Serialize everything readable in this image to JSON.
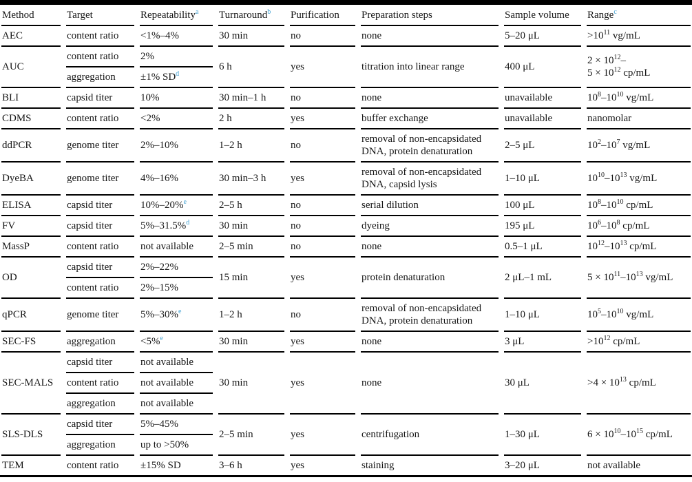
{
  "accent_color": "#3f9fd1",
  "table": {
    "columns": [
      {
        "label": "Method",
        "footnote": ""
      },
      {
        "label": "Target",
        "footnote": ""
      },
      {
        "label": "Repeatability",
        "footnote": "a"
      },
      {
        "label": "Turnaround",
        "footnote": "b"
      },
      {
        "label": "Purification",
        "footnote": ""
      },
      {
        "label": "Preparation steps",
        "footnote": ""
      },
      {
        "label": "Sample volume",
        "footnote": ""
      },
      {
        "label": "Range",
        "footnote": "c"
      }
    ],
    "groups": [
      {
        "method": "AEC",
        "rows": [
          {
            "target": "content ratio",
            "repeatability": "<1%–4%",
            "footnote": ""
          }
        ],
        "turnaround": "30 min",
        "purification": "no",
        "preparation": "none",
        "sample_volume": "5–20 μL",
        "range": ">10^{11} vg/mL"
      },
      {
        "method": "AUC",
        "rows": [
          {
            "target": "content ratio",
            "repeatability": "2%",
            "footnote": ""
          },
          {
            "target": "aggregation",
            "repeatability": "±1% SD",
            "footnote": "d"
          }
        ],
        "turnaround": "6 h",
        "purification": "yes",
        "preparation": "titration into linear range",
        "sample_volume": "400 μL",
        "range": "2 × 10^{12}–\n5 × 10^{12} cp/mL"
      },
      {
        "method": "BLI",
        "rows": [
          {
            "target": "capsid titer",
            "repeatability": "10%",
            "footnote": ""
          }
        ],
        "turnaround": "30 min–1 h",
        "purification": "no",
        "preparation": "none",
        "sample_volume": "unavailable",
        "range": "10^{8}–10^{10} vg/mL"
      },
      {
        "method": "CDMS",
        "rows": [
          {
            "target": "content ratio",
            "repeatability": "<2%",
            "footnote": ""
          }
        ],
        "turnaround": "2 h",
        "purification": "yes",
        "preparation": "buffer exchange",
        "sample_volume": "unavailable",
        "range": "nanomolar"
      },
      {
        "method": "ddPCR",
        "rows": [
          {
            "target": "genome titer",
            "repeatability": "2%–10%",
            "footnote": ""
          }
        ],
        "turnaround": "1–2 h",
        "purification": "no",
        "preparation": "removal of non-encapsidated DNA, protein denaturation",
        "sample_volume": "2–5 μL",
        "range": "10^{2}–10^{7} vg/mL"
      },
      {
        "method": "DyeBA",
        "rows": [
          {
            "target": "genome titer",
            "repeatability": "4%–16%",
            "footnote": ""
          }
        ],
        "turnaround": "30 min–3 h",
        "purification": "yes",
        "preparation": "removal of non-encapsidated DNA, capsid lysis",
        "sample_volume": "1–10 μL",
        "range": "10^{10}–10^{13} vg/mL"
      },
      {
        "method": "ELISA",
        "rows": [
          {
            "target": "capsid titer",
            "repeatability": "10%–20%",
            "footnote": "e"
          }
        ],
        "turnaround": "2–5 h",
        "purification": "no",
        "preparation": "serial dilution",
        "sample_volume": "100 μL",
        "range": "10^{8}–10^{10} cp/mL"
      },
      {
        "method": "FV",
        "rows": [
          {
            "target": "capsid titer",
            "repeatability": "5%–31.5%",
            "footnote": "d"
          }
        ],
        "turnaround": "30 min",
        "purification": "no",
        "preparation": "dyeing",
        "sample_volume": "195 μL",
        "range": "10^{6}–10^{8} cp/mL"
      },
      {
        "method": "MassP",
        "rows": [
          {
            "target": "content ratio",
            "repeatability": "not available",
            "footnote": ""
          }
        ],
        "turnaround": "2–5 min",
        "purification": "no",
        "preparation": "none",
        "sample_volume": "0.5–1 μL",
        "range": "10^{12}–10^{13} cp/mL"
      },
      {
        "method": "OD",
        "rows": [
          {
            "target": "capsid titer",
            "repeatability": "2%–22%",
            "footnote": ""
          },
          {
            "target": "content ratio",
            "repeatability": "2%–15%",
            "footnote": ""
          }
        ],
        "turnaround": "15 min",
        "purification": "yes",
        "preparation": "protein denaturation",
        "sample_volume": "2 μL–1 mL",
        "range": "5 × 10^{11}–10^{13} vg/mL"
      },
      {
        "method": "qPCR",
        "rows": [
          {
            "target": "genome titer",
            "repeatability": "5%–30%",
            "footnote": "e"
          }
        ],
        "turnaround": "1–2 h",
        "purification": "no",
        "preparation": "removal of non-encapsidated DNA, protein denaturation",
        "sample_volume": "1–10 μL",
        "range": "10^{5}–10^{10} vg/mL"
      },
      {
        "method": "SEC-FS",
        "rows": [
          {
            "target": "aggregation",
            "repeatability": "<5%",
            "footnote": "e"
          }
        ],
        "turnaround": "30 min",
        "purification": "yes",
        "preparation": "none",
        "sample_volume": "3 μL",
        "range": ">10^{12} cp/mL"
      },
      {
        "method": "SEC-MALS",
        "rows": [
          {
            "target": "capsid titer",
            "repeatability": "not available",
            "footnote": ""
          },
          {
            "target": "content ratio",
            "repeatability": "not available",
            "footnote": ""
          },
          {
            "target": "aggregation",
            "repeatability": "not available",
            "footnote": ""
          }
        ],
        "turnaround": "30 min",
        "purification": "yes",
        "preparation": "none",
        "sample_volume": "30 μL",
        "range": ">4 × 10^{13} cp/mL"
      },
      {
        "method": "SLS-DLS",
        "rows": [
          {
            "target": "capsid titer",
            "repeatability": "5%–45%",
            "footnote": ""
          },
          {
            "target": "aggregation",
            "repeatability": "up to >50%",
            "footnote": ""
          }
        ],
        "turnaround": "2–5 min",
        "purification": "yes",
        "preparation": "centrifugation",
        "sample_volume": "1–30 μL",
        "range": "6 × 10^{10}–10^{15} cp/mL"
      },
      {
        "method": "TEM",
        "rows": [
          {
            "target": "content ratio",
            "repeatability": "±15% SD",
            "footnote": ""
          }
        ],
        "turnaround": "3–6 h",
        "purification": "yes",
        "preparation": "staining",
        "sample_volume": "3–20 μL",
        "range": "not available"
      }
    ]
  }
}
